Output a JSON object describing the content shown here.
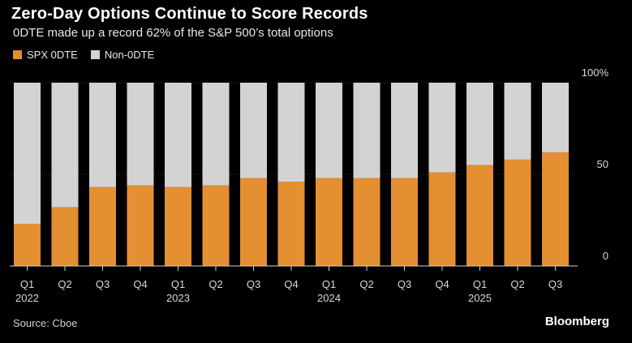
{
  "chart_data": {
    "type": "bar",
    "stacked": true,
    "title": "Zero-Day Options Continue to Score Records",
    "subtitle": "0DTE made up a record 62% of the S&P 500’s total options",
    "categories": [
      "Q1",
      "Q2",
      "Q3",
      "Q4",
      "Q1",
      "Q2",
      "Q3",
      "Q4",
      "Q1",
      "Q2",
      "Q3",
      "Q4",
      "Q1",
      "Q2",
      "Q3"
    ],
    "year_labels": [
      "2022",
      "",
      "",
      "",
      "2023",
      "",
      "",
      "",
      "2024",
      "",
      "",
      "",
      "2025",
      "",
      ""
    ],
    "series": [
      {
        "name": "SPX 0DTE",
        "color": "#e38f32",
        "values": [
          23,
          32,
          43,
          44,
          43,
          44,
          48,
          46,
          48,
          48,
          48,
          51,
          55,
          58,
          62
        ]
      },
      {
        "name": "Non-0DTE",
        "color": "#d3d3d3",
        "values": [
          77,
          68,
          57,
          56,
          57,
          56,
          52,
          54,
          52,
          52,
          52,
          49,
          45,
          42,
          38
        ]
      }
    ],
    "ylim": [
      0,
      100
    ],
    "yticks": [
      0,
      50,
      100
    ],
    "ytick_labels": [
      "0",
      "50",
      "100%"
    ],
    "xlabel": "",
    "ylabel": "",
    "legend": "top-left",
    "source": "Source: Cboe",
    "brand": "Bloomberg"
  }
}
